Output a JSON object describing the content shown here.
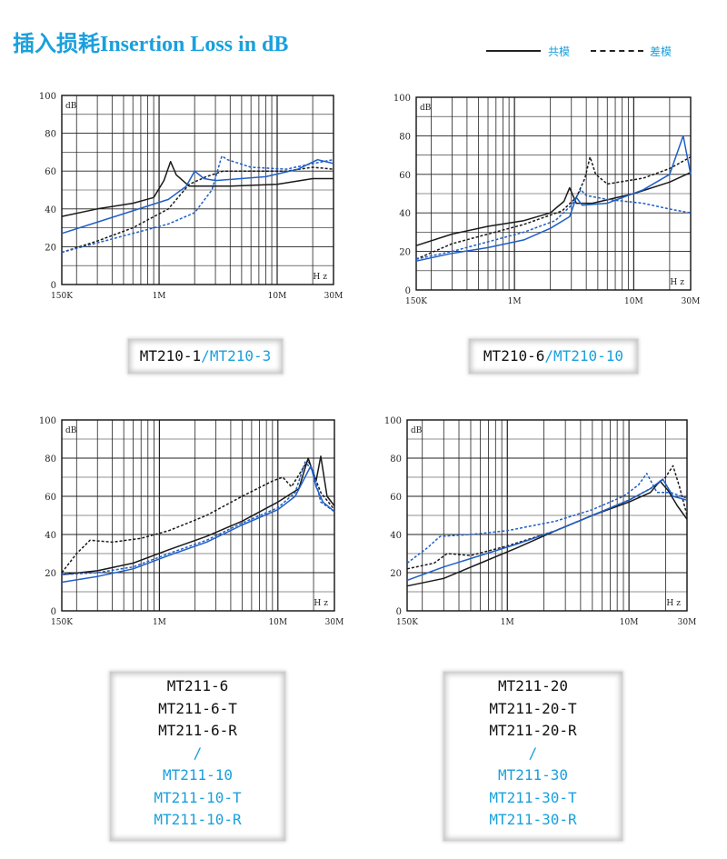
{
  "header": {
    "title": "插入损耗Insertion Loss in dB",
    "legend": {
      "solid_label": "共模",
      "dashed_label": "差模"
    }
  },
  "colors": {
    "accent": "#1aa0dc",
    "curve_black": "#1a1a1a",
    "curve_blue": "#1f5fc8",
    "curve_blue_light": "#2a78d8"
  },
  "chart_data": [
    {
      "type": "line",
      "y_unit_label": "dB",
      "x_unit_label": "Hz",
      "x_scale": "log",
      "xlim": [
        0.15,
        30
      ],
      "ylim": [
        0,
        100
      ],
      "grid": true,
      "x_tick_labels": [
        "150K",
        "1M",
        "10M",
        "30M"
      ],
      "y_tick_labels": [
        "0",
        "20",
        "40",
        "60",
        "80",
        "100"
      ],
      "model_label": {
        "black": "MT210-1",
        "sep": "/",
        "blue": "MT210-3"
      },
      "series": [
        {
          "color": "black",
          "dash": false,
          "points": [
            [
              0.15,
              36
            ],
            [
              0.3,
              40
            ],
            [
              0.6,
              43
            ],
            [
              0.9,
              46
            ],
            [
              1.1,
              55
            ],
            [
              1.25,
              65
            ],
            [
              1.4,
              58
            ],
            [
              1.8,
              52
            ],
            [
              4,
              52
            ],
            [
              10,
              53
            ],
            [
              20,
              56
            ],
            [
              30,
              56
            ]
          ]
        },
        {
          "color": "black",
          "dash": true,
          "points": [
            [
              0.15,
              17
            ],
            [
              0.3,
              23
            ],
            [
              0.6,
              30
            ],
            [
              1.2,
              40
            ],
            [
              1.8,
              53
            ],
            [
              2.5,
              57
            ],
            [
              3.5,
              60
            ],
            [
              6,
              60
            ],
            [
              12,
              60
            ],
            [
              20,
              62
            ],
            [
              30,
              61
            ]
          ]
        },
        {
          "color": "blue",
          "dash": false,
          "points": [
            [
              0.15,
              27
            ],
            [
              0.3,
              33
            ],
            [
              0.6,
              39
            ],
            [
              1.2,
              45
            ],
            [
              1.7,
              52
            ],
            [
              2,
              60
            ],
            [
              2.4,
              56
            ],
            [
              3,
              55
            ],
            [
              8,
              57
            ],
            [
              15,
              61
            ],
            [
              22,
              66
            ],
            [
              30,
              64
            ]
          ]
        },
        {
          "color": "blue",
          "dash": true,
          "points": [
            [
              0.15,
              17
            ],
            [
              0.3,
              22
            ],
            [
              0.6,
              27
            ],
            [
              1.2,
              32
            ],
            [
              2,
              38
            ],
            [
              2.8,
              50
            ],
            [
              3.4,
              68
            ],
            [
              3.8,
              66
            ],
            [
              6,
              62
            ],
            [
              12,
              61
            ],
            [
              20,
              64
            ],
            [
              30,
              66
            ]
          ]
        }
      ]
    },
    {
      "type": "line",
      "y_unit_label": "dB",
      "x_unit_label": "Hz",
      "x_scale": "log",
      "xlim": [
        0.15,
        30
      ],
      "ylim": [
        0,
        100
      ],
      "grid": true,
      "x_tick_labels": [
        "150K",
        "1M",
        "10M",
        "30M"
      ],
      "y_tick_labels": [
        "0",
        "20",
        "40",
        "60",
        "80",
        "100"
      ],
      "model_label": {
        "black": "MT210-6",
        "sep": "/",
        "blue": "MT210-10"
      },
      "series": [
        {
          "color": "black",
          "dash": false,
          "points": [
            [
              0.15,
              23
            ],
            [
              0.3,
              29
            ],
            [
              0.6,
              33
            ],
            [
              1.2,
              36
            ],
            [
              2,
              40
            ],
            [
              2.6,
              46
            ],
            [
              2.9,
              53
            ],
            [
              3.3,
              45
            ],
            [
              4.5,
              45
            ],
            [
              10,
              50
            ],
            [
              20,
              56
            ],
            [
              30,
              61
            ]
          ]
        },
        {
          "color": "black",
          "dash": true,
          "points": [
            [
              0.15,
              16
            ],
            [
              0.3,
              24
            ],
            [
              0.6,
              29
            ],
            [
              1.2,
              34
            ],
            [
              2.5,
              41
            ],
            [
              3.3,
              48
            ],
            [
              3.9,
              58
            ],
            [
              4.3,
              69
            ],
            [
              4.8,
              60
            ],
            [
              6,
              55
            ],
            [
              12,
              58
            ],
            [
              20,
              63
            ],
            [
              30,
              69
            ]
          ]
        },
        {
          "color": "blue",
          "dash": false,
          "points": [
            [
              0.15,
              15
            ],
            [
              0.3,
              19
            ],
            [
              0.6,
              22
            ],
            [
              1.2,
              26
            ],
            [
              2,
              32
            ],
            [
              2.9,
              38
            ],
            [
              3.3,
              48
            ],
            [
              3.7,
              44
            ],
            [
              6,
              45
            ],
            [
              12,
              52
            ],
            [
              20,
              60
            ],
            [
              26,
              80
            ],
            [
              30,
              60
            ]
          ]
        },
        {
          "color": "blue",
          "dash": true,
          "points": [
            [
              0.15,
              16
            ],
            [
              0.3,
              20
            ],
            [
              0.6,
              25
            ],
            [
              1.2,
              30
            ],
            [
              2.2,
              36
            ],
            [
              3,
              44
            ],
            [
              3.6,
              52
            ],
            [
              4,
              49
            ],
            [
              6,
              47
            ],
            [
              12,
              45
            ],
            [
              20,
              42
            ],
            [
              30,
              40
            ]
          ]
        }
      ]
    },
    {
      "type": "line",
      "y_unit_label": "dB",
      "x_unit_label": "Hz",
      "x_scale": "log",
      "xlim": [
        0.15,
        30
      ],
      "ylim": [
        0,
        100
      ],
      "grid": true,
      "x_tick_labels": [
        "150K",
        "1M",
        "10M",
        "30M"
      ],
      "y_tick_labels": [
        "0",
        "20",
        "40",
        "60",
        "80",
        "100"
      ],
      "model_label": {
        "lines_black": [
          "MT211-6",
          "MT211-6-T",
          "MT211-6-R"
        ],
        "sep": "/",
        "lines_blue": [
          "MT211-10",
          "MT211-10-T",
          "MT211-10-R"
        ]
      },
      "series": [
        {
          "color": "black",
          "dash": false,
          "points": [
            [
              0.15,
              19
            ],
            [
              0.3,
              21
            ],
            [
              0.6,
              25
            ],
            [
              1.2,
              32
            ],
            [
              2.5,
              39
            ],
            [
              5,
              47
            ],
            [
              10,
              57
            ],
            [
              15,
              64
            ],
            [
              18,
              80
            ],
            [
              21,
              68
            ],
            [
              23,
              81
            ],
            [
              26,
              60
            ],
            [
              30,
              55
            ]
          ]
        },
        {
          "color": "black",
          "dash": true,
          "points": [
            [
              0.15,
              20
            ],
            [
              0.2,
              30
            ],
            [
              0.26,
              37
            ],
            [
              0.4,
              36
            ],
            [
              0.7,
              38
            ],
            [
              1.2,
              42
            ],
            [
              2.5,
              50
            ],
            [
              5,
              60
            ],
            [
              9,
              68
            ],
            [
              11,
              70
            ],
            [
              13,
              65
            ],
            [
              18,
              79
            ],
            [
              23,
              62
            ],
            [
              30,
              53
            ]
          ]
        },
        {
          "color": "blue",
          "dash": false,
          "points": [
            [
              0.15,
              15
            ],
            [
              0.3,
              18
            ],
            [
              0.6,
              22
            ],
            [
              1.2,
              29
            ],
            [
              2.5,
              36
            ],
            [
              5,
              45
            ],
            [
              10,
              53
            ],
            [
              14,
              60
            ],
            [
              19,
              76
            ],
            [
              21,
              65
            ],
            [
              24,
              57
            ],
            [
              30,
              52
            ]
          ]
        },
        {
          "color": "blue",
          "dash": true,
          "points": [
            [
              0.15,
              19
            ],
            [
              0.3,
              20
            ],
            [
              0.6,
              23
            ],
            [
              1.2,
              30
            ],
            [
              2.5,
              37
            ],
            [
              5,
              46
            ],
            [
              10,
              54
            ],
            [
              14,
              62
            ],
            [
              17,
              78
            ],
            [
              20,
              73
            ],
            [
              23,
              57
            ],
            [
              30,
              52
            ]
          ]
        }
      ]
    },
    {
      "type": "line",
      "y_unit_label": "dB",
      "x_unit_label": "Hz",
      "x_scale": "log",
      "xlim": [
        0.15,
        30
      ],
      "ylim": [
        0,
        100
      ],
      "grid": true,
      "x_tick_labels": [
        "150K",
        "1M",
        "10M",
        "30M"
      ],
      "y_tick_labels": [
        "0",
        "20",
        "40",
        "60",
        "80",
        "100"
      ],
      "model_label": {
        "lines_black": [
          "MT211-20",
          "MT211-20-T",
          "MT211-20-R"
        ],
        "sep": "/",
        "lines_blue": [
          "MT211-30",
          "MT211-30-T",
          "MT211-30-R"
        ]
      },
      "series": [
        {
          "color": "black",
          "dash": false,
          "points": [
            [
              0.15,
              13
            ],
            [
              0.3,
              17
            ],
            [
              0.6,
              25
            ],
            [
              1.2,
              33
            ],
            [
              2.5,
              42
            ],
            [
              5,
              50
            ],
            [
              10,
              57
            ],
            [
              15,
              62
            ],
            [
              18,
              68
            ],
            [
              21,
              63
            ],
            [
              25,
              55
            ],
            [
              30,
              48
            ]
          ]
        },
        {
          "color": "black",
          "dash": true,
          "points": [
            [
              0.15,
              22
            ],
            [
              0.25,
              25
            ],
            [
              0.32,
              30
            ],
            [
              0.5,
              29
            ],
            [
              1,
              34
            ],
            [
              2.5,
              42
            ],
            [
              5,
              50
            ],
            [
              10,
              58
            ],
            [
              16,
              65
            ],
            [
              20,
              70
            ],
            [
              23,
              76
            ],
            [
              26,
              65
            ],
            [
              30,
              50
            ]
          ]
        },
        {
          "color": "blue",
          "dash": false,
          "points": [
            [
              0.15,
              16
            ],
            [
              0.3,
              23
            ],
            [
              0.6,
              29
            ],
            [
              1.2,
              35
            ],
            [
              2.5,
              42
            ],
            [
              5,
              50
            ],
            [
              10,
              58
            ],
            [
              15,
              64
            ],
            [
              19,
              69
            ],
            [
              23,
              60
            ],
            [
              30,
              58
            ]
          ]
        },
        {
          "color": "blue",
          "dash": true,
          "points": [
            [
              0.15,
              25
            ],
            [
              0.22,
              33
            ],
            [
              0.28,
              39
            ],
            [
              0.5,
              40
            ],
            [
              1,
              42
            ],
            [
              2.5,
              47
            ],
            [
              5,
              53
            ],
            [
              9,
              60
            ],
            [
              12,
              66
            ],
            [
              14,
              72
            ],
            [
              17,
              62
            ],
            [
              22,
              62
            ],
            [
              30,
              59
            ]
          ]
        }
      ]
    }
  ]
}
